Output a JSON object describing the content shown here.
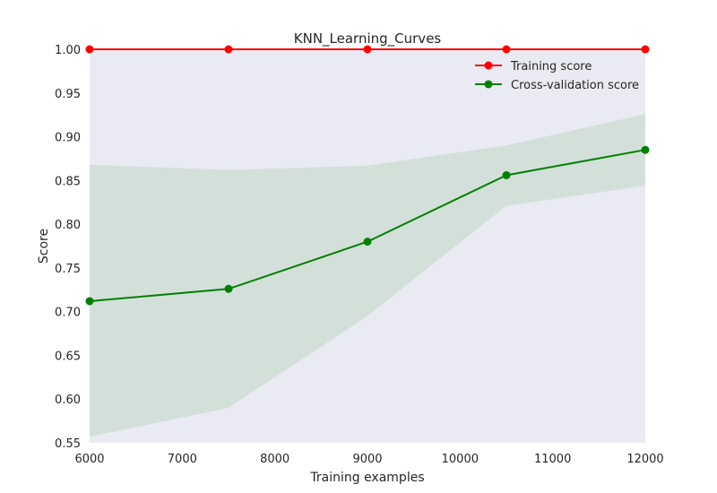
{
  "chart_data": {
    "type": "line",
    "title": "KNN_Learning_Curves",
    "xlabel": "Training examples",
    "ylabel": "Score",
    "xlim": [
      6000,
      12000
    ],
    "ylim": [
      0.55,
      1.0
    ],
    "x": [
      6000,
      7500,
      9000,
      10500,
      12000
    ],
    "xticks": [
      "6000",
      "7000",
      "8000",
      "9000",
      "10000",
      "11000",
      "12000"
    ],
    "xtick_values": [
      6000,
      7000,
      8000,
      9000,
      10000,
      11000,
      12000
    ],
    "yticks": [
      "0.55",
      "0.60",
      "0.65",
      "0.70",
      "0.75",
      "0.80",
      "0.85",
      "0.90",
      "0.95",
      "1.00"
    ],
    "ytick_values": [
      0.55,
      0.6,
      0.65,
      0.7,
      0.75,
      0.8,
      0.85,
      0.9,
      0.95,
      1.0
    ],
    "grid": false,
    "legend_position": "top-right",
    "background_color": "#eaeaf2",
    "series": [
      {
        "name": "Training score",
        "color": "#ff0000",
        "values": [
          1.0,
          1.0,
          1.0,
          1.0,
          1.0
        ],
        "band_lower": [
          1.0,
          1.0,
          1.0,
          1.0,
          1.0
        ],
        "band_upper": [
          1.0,
          1.0,
          1.0,
          1.0,
          1.0
        ]
      },
      {
        "name": "Cross-validation score",
        "color": "#008000",
        "band_color": "#d3e0da",
        "values": [
          0.712,
          0.726,
          0.78,
          0.856,
          0.885
        ],
        "band_lower": [
          0.557,
          0.59,
          0.695,
          0.821,
          0.844
        ],
        "band_upper": [
          0.868,
          0.862,
          0.867,
          0.89,
          0.926
        ]
      }
    ]
  }
}
